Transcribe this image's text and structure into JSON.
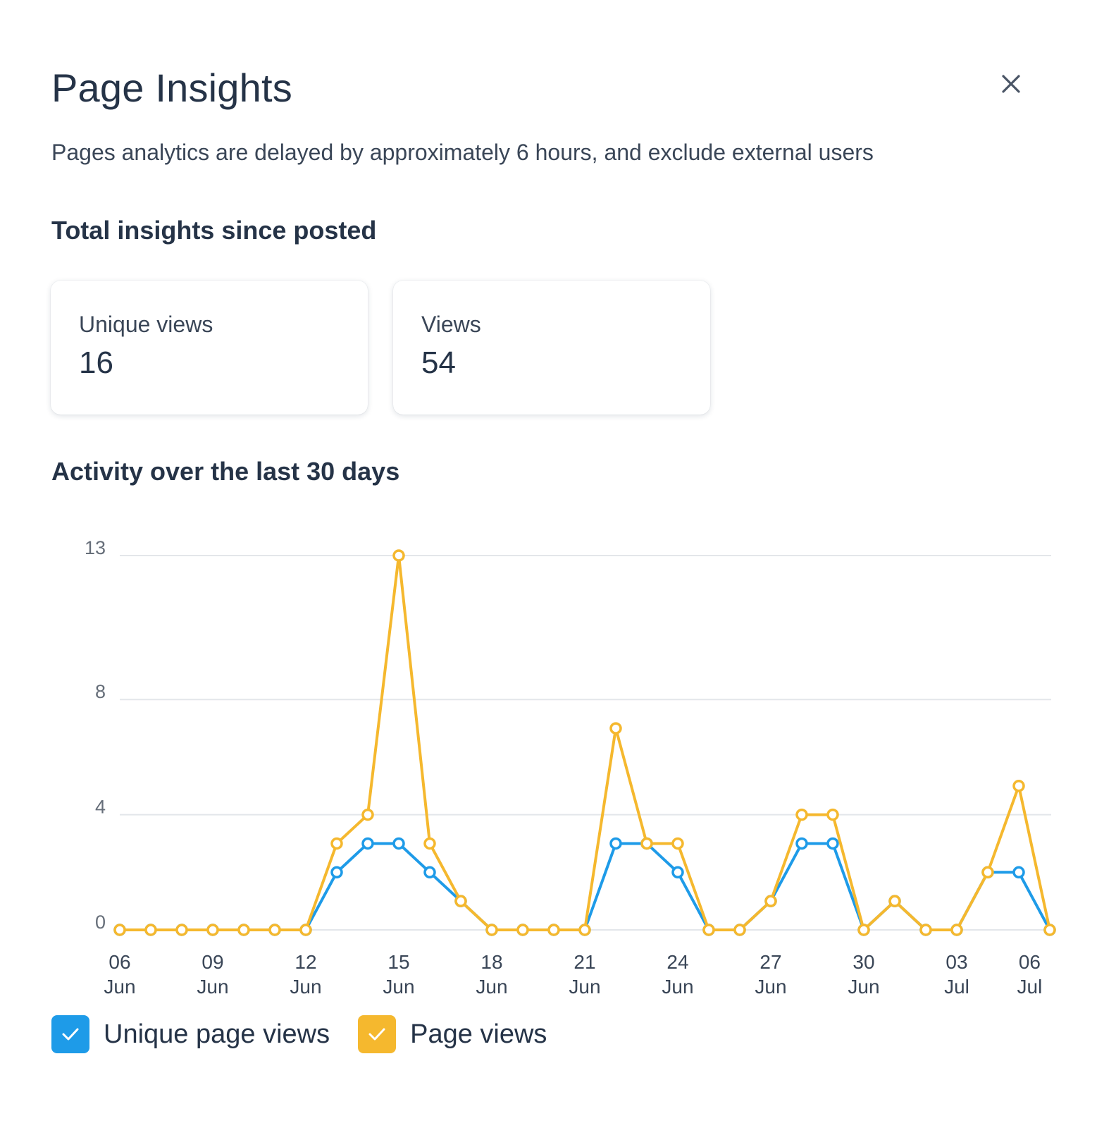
{
  "header": {
    "title": "Page Insights",
    "close_icon": "close-icon",
    "subtitle": "Pages analytics are delayed by approximately 6 hours, and exclude external users"
  },
  "totals": {
    "heading": "Total insights since posted",
    "cards": [
      {
        "label": "Unique views",
        "value": "16"
      },
      {
        "label": "Views",
        "value": "54"
      }
    ]
  },
  "activity": {
    "heading": "Activity over the last 30 days"
  },
  "legend": {
    "items": [
      {
        "label": "Unique page views",
        "color": "#1e9be8",
        "checked": true,
        "icon": "check-icon"
      },
      {
        "label": "Page views",
        "color": "#f5b82e",
        "checked": true,
        "icon": "check-icon"
      }
    ]
  },
  "chart_data": {
    "type": "line",
    "title": "Activity over the last 30 days",
    "xlabel": "",
    "ylabel": "",
    "ylim": [
      0,
      13
    ],
    "yticks": [
      0,
      4,
      8,
      13
    ],
    "x": [
      "06 Jun",
      "07 Jun",
      "08 Jun",
      "09 Jun",
      "10 Jun",
      "11 Jun",
      "12 Jun",
      "13 Jun",
      "14 Jun",
      "15 Jun",
      "16 Jun",
      "17 Jun",
      "18 Jun",
      "19 Jun",
      "20 Jun",
      "21 Jun",
      "22 Jun",
      "23 Jun",
      "24 Jun",
      "25 Jun",
      "26 Jun",
      "27 Jun",
      "28 Jun",
      "29 Jun",
      "30 Jun",
      "01 Jul",
      "02 Jul",
      "03 Jul",
      "04 Jul",
      "05 Jul",
      "06 Jul"
    ],
    "xtick_labels": [
      {
        "index": 0,
        "top": "06",
        "bottom": "Jun"
      },
      {
        "index": 3,
        "top": "09",
        "bottom": "Jun"
      },
      {
        "index": 6,
        "top": "12",
        "bottom": "Jun"
      },
      {
        "index": 9,
        "top": "15",
        "bottom": "Jun"
      },
      {
        "index": 12,
        "top": "18",
        "bottom": "Jun"
      },
      {
        "index": 15,
        "top": "21",
        "bottom": "Jun"
      },
      {
        "index": 18,
        "top": "24",
        "bottom": "Jun"
      },
      {
        "index": 21,
        "top": "27",
        "bottom": "Jun"
      },
      {
        "index": 24,
        "top": "30",
        "bottom": "Jun"
      },
      {
        "index": 27,
        "top": "03",
        "bottom": "Jul"
      },
      {
        "index": 29.35,
        "top": "06",
        "bottom": "Jul"
      }
    ],
    "series": [
      {
        "name": "Unique page views",
        "color": "#1e9be8",
        "values": [
          0,
          0,
          0,
          0,
          0,
          0,
          0,
          2,
          3,
          3,
          2,
          1,
          0,
          0,
          0,
          0,
          3,
          3,
          2,
          0,
          0,
          1,
          3,
          3,
          0,
          1,
          0,
          0,
          2,
          2,
          0
        ]
      },
      {
        "name": "Page views",
        "color": "#f5b82e",
        "values": [
          0,
          0,
          0,
          0,
          0,
          0,
          0,
          3,
          4,
          13,
          3,
          1,
          0,
          0,
          0,
          0,
          7,
          3,
          3,
          0,
          0,
          1,
          4,
          4,
          0,
          1,
          0,
          0,
          2,
          5,
          0
        ]
      }
    ],
    "grid": true,
    "legend_position": "bottom-left"
  }
}
